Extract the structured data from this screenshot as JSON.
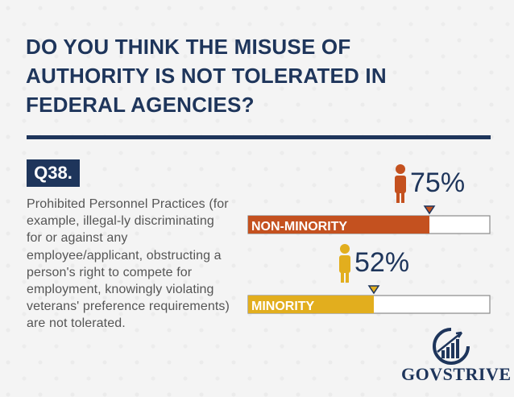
{
  "title": "DO YOU THINK THE MISUSE OF AUTHORITY IS NOT TOLERATED IN FEDERAL AGENCIES?",
  "question": {
    "number": "Q38.",
    "text": "Prohibited Personnel Practices (for example, illegal-ly discriminating for or against any employee/applicant, obstructing a person's right to compete for employment, knowingly violating veterans' preference requirements) are not tolerated."
  },
  "chart_data": {
    "type": "bar",
    "orientation": "horizontal",
    "categories": [
      "NON-MINORITY",
      "MINORITY"
    ],
    "values": [
      75,
      52
    ],
    "value_labels": [
      "75%",
      "52%"
    ],
    "colors": [
      "#c4511f",
      "#e2ae1e"
    ],
    "xlim": [
      0,
      100
    ]
  },
  "brand": {
    "name": "GOVSTRIVE",
    "navy": "#1e355b"
  }
}
